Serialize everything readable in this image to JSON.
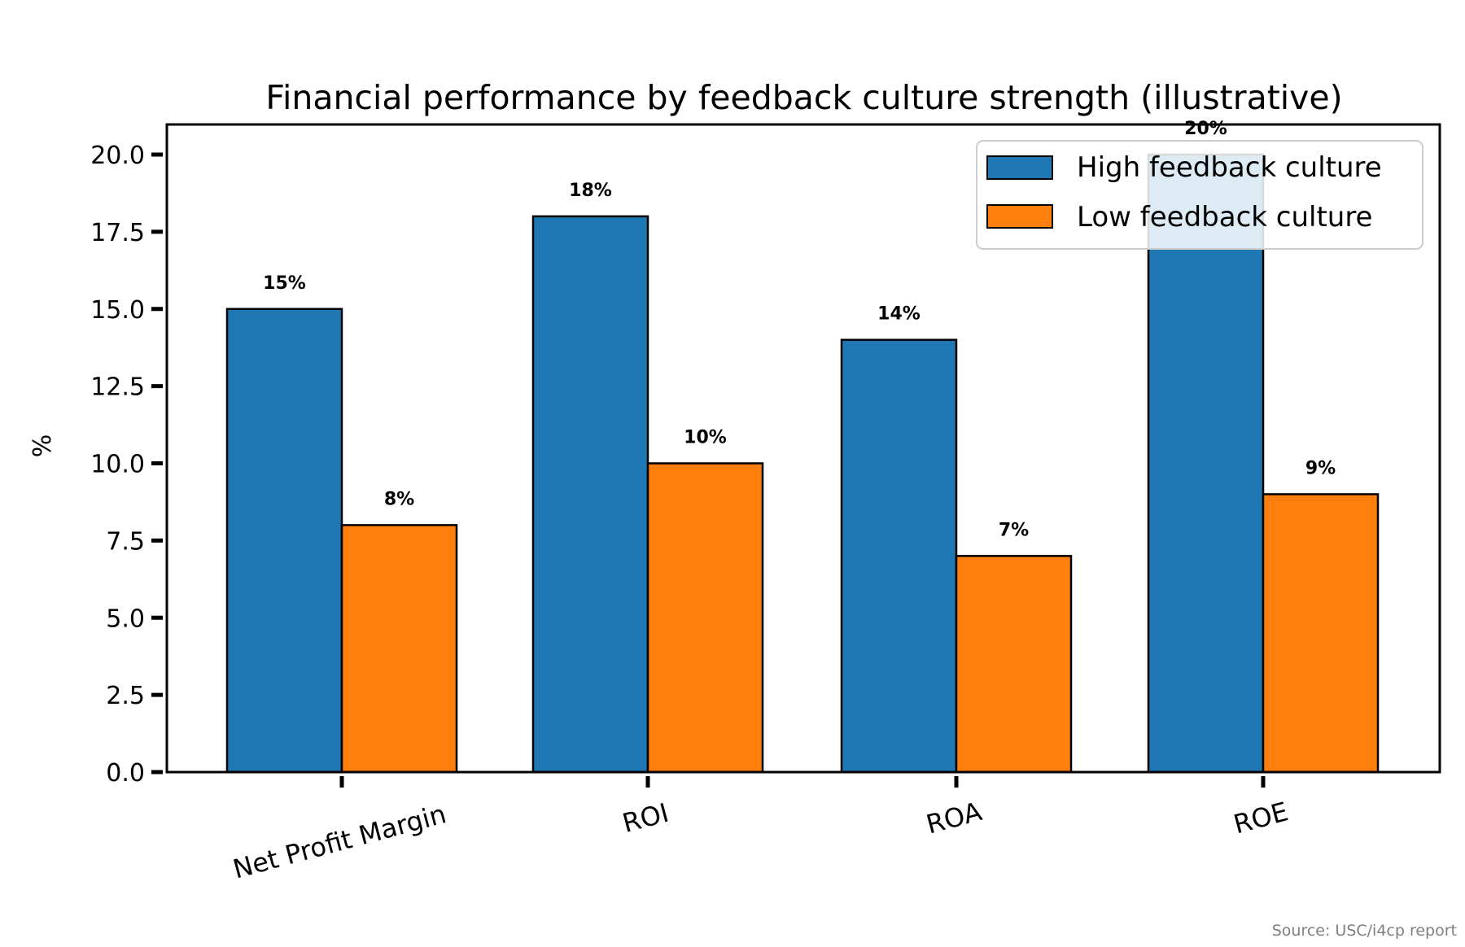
{
  "chart_data": {
    "type": "bar",
    "title": "Financial performance by feedback culture strength (illustrative)",
    "xlabel": "",
    "ylabel": "%",
    "ylim": [
      0,
      21
    ],
    "yticks": [
      "0.0",
      "2.5",
      "5.0",
      "7.5",
      "10.0",
      "12.5",
      "15.0",
      "17.5",
      "20.0"
    ],
    "categories": [
      "Net Profit Margin",
      "ROI",
      "ROA",
      "ROE"
    ],
    "series": [
      {
        "name": "High feedback culture",
        "color": "#1f77b4",
        "values": [
          15,
          18,
          14,
          20
        ],
        "labels": [
          "15%",
          "18%",
          "14%",
          "20%"
        ]
      },
      {
        "name": "Low feedback culture",
        "color": "#ff7f0e",
        "values": [
          8,
          10,
          7,
          9
        ],
        "labels": [
          "8%",
          "10%",
          "7%",
          "9%"
        ]
      }
    ],
    "legend": "top-right",
    "grid": false,
    "source": "Source: USC/i4cp report"
  }
}
